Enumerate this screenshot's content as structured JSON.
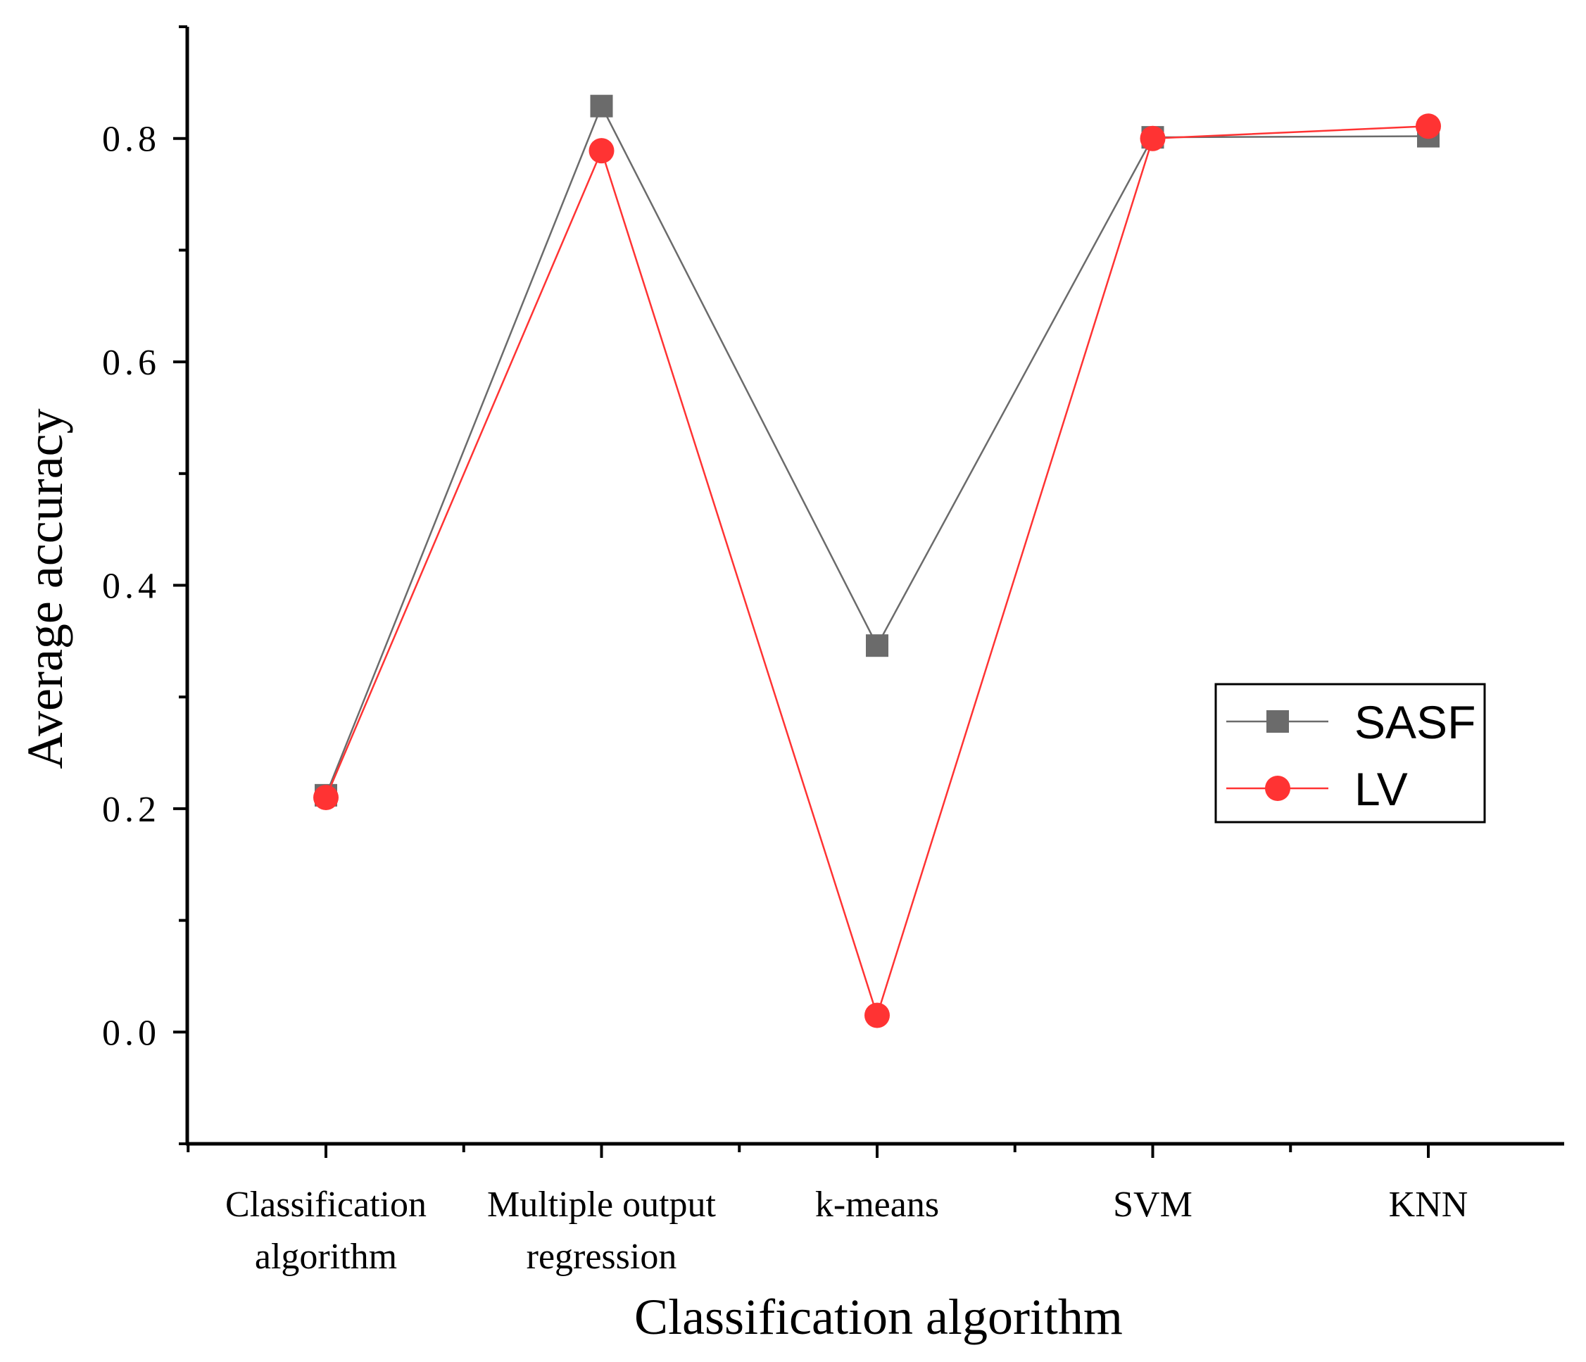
{
  "chart_data": {
    "type": "line",
    "title": "",
    "xlabel": "Classification algorithm",
    "ylabel": "Average accuracy",
    "categories": [
      [
        "Classification",
        "algorithm"
      ],
      [
        "Multiple output",
        "regression"
      ],
      [
        "k-means"
      ],
      [
        "SVM"
      ],
      [
        "KNN"
      ]
    ],
    "ylim": [
      -0.1,
      0.9
    ],
    "yticks": [
      0.0,
      0.2,
      0.4,
      0.6,
      0.8
    ],
    "ytick_labels": [
      "0.0",
      "0.2",
      "0.4",
      "0.6",
      "0.8"
    ],
    "grid": false,
    "legend_position": "center-right",
    "series": [
      {
        "name": "SASF",
        "marker": "square",
        "color": "#6b6b6b",
        "values": [
          0.212,
          0.829,
          0.346,
          0.801,
          0.802
        ]
      },
      {
        "name": "LV",
        "marker": "circle",
        "color": "#ff3333",
        "values": [
          0.21,
          0.789,
          0.015,
          0.8,
          0.811
        ]
      }
    ]
  }
}
